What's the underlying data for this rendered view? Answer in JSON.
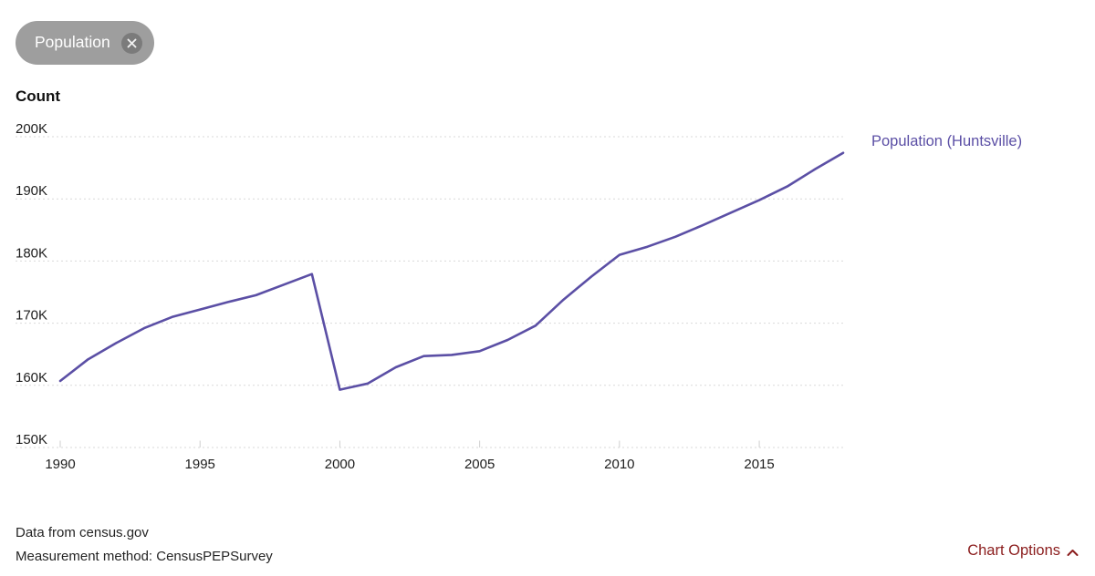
{
  "filter_pill": {
    "label": "Population",
    "close_icon": "x-circle-icon"
  },
  "chart_data": {
    "type": "line",
    "title": "Count",
    "unit": "thousands (K)",
    "grid": "horizontal dashed",
    "legend_position": "right of line end",
    "xlim": [
      1990,
      2018
    ],
    "ylim": [
      150,
      200
    ],
    "x_ticks": [
      1990,
      1995,
      2000,
      2005,
      2010,
      2015
    ],
    "y_ticks": [
      150,
      160,
      170,
      180,
      190,
      200
    ],
    "y_tick_labels": [
      "150K",
      "160K",
      "170K",
      "180K",
      "190K",
      "200K"
    ],
    "x": [
      1990,
      1991,
      1992,
      1993,
      1994,
      1995,
      1996,
      1997,
      1998,
      1999,
      2000,
      2001,
      2002,
      2003,
      2004,
      2005,
      2006,
      2007,
      2008,
      2009,
      2010,
      2011,
      2012,
      2013,
      2014,
      2015,
      2016,
      2017,
      2018
    ],
    "series": [
      {
        "name": "Population (Huntsville)",
        "color": "#5b4fa5",
        "values_thousands": [
          160.7,
          164.2,
          166.8,
          169.2,
          171.0,
          172.2,
          173.4,
          174.5,
          176.2,
          177.9,
          159.3,
          160.3,
          162.9,
          164.7,
          164.9,
          165.5,
          167.3,
          169.6,
          173.8,
          177.5,
          181.0,
          182.3,
          183.9,
          185.8,
          187.8,
          189.8,
          192.0,
          194.8,
          197.4
        ]
      }
    ]
  },
  "footer": {
    "source": "Data from census.gov",
    "method": "Measurement method: CensusPEPSurvey"
  },
  "chart_options": {
    "label": "Chart Options",
    "icon": "chevron-up-icon"
  },
  "colors": {
    "line_purple": "#5b4fa5",
    "options_red": "#8b1d1d",
    "pill_gray": "#9e9e9e",
    "pill_close_gray": "#7b7b7b",
    "grid_gray": "#d9d9d9",
    "tick_gray": "#cfcfcf",
    "axis_text": "#1d1d1d"
  }
}
